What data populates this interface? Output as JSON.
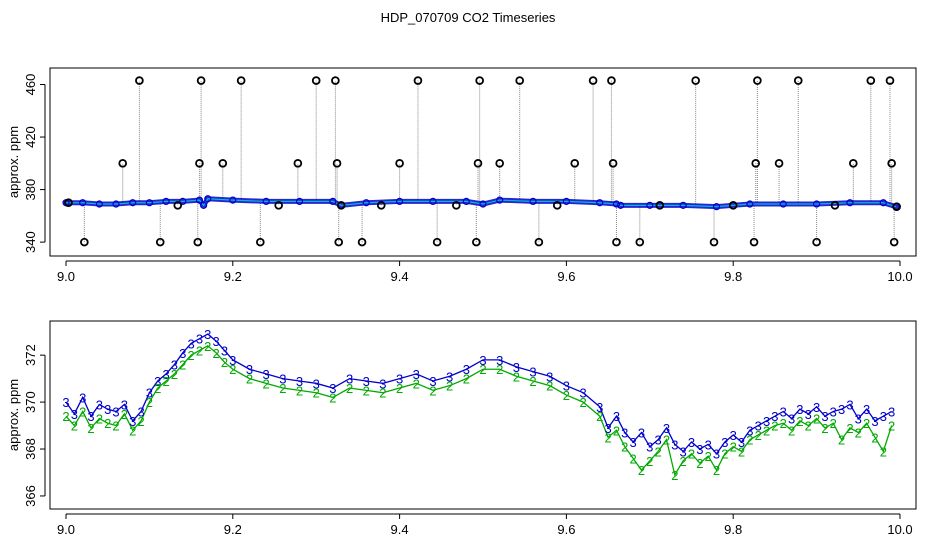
{
  "title": "HDP_070709  CO2 Timeseries",
  "colors": {
    "circle": "#000000",
    "series_blue": "#0000cc",
    "series_cyan": "#00cccc",
    "series_green": "#00aa00",
    "spike_line": "#888888"
  },
  "chart_data": [
    {
      "type": "scatter",
      "ylabel": "approx. ppm",
      "xlim": [
        9.0,
        10.0
      ],
      "ylim": [
        334,
        468
      ],
      "xticks": [
        "9.0",
        "9.2",
        "9.4",
        "9.6",
        "9.8",
        "10.0"
      ],
      "yticks": [
        "340",
        "380",
        "420",
        "460"
      ],
      "series": [
        {
          "x": [
            9.0,
            9.02,
            9.04,
            9.06,
            9.08,
            9.1,
            9.12,
            9.14,
            9.16,
            9.165,
            9.17,
            9.2,
            9.24,
            9.28,
            9.32,
            9.33,
            9.36,
            9.4,
            9.44,
            9.48,
            9.5,
            9.52,
            9.56,
            9.6,
            9.64,
            9.66,
            9.665,
            9.7,
            9.74,
            9.78,
            9.82,
            9.86,
            9.9,
            9.94,
            9.98,
            9.995
          ],
          "y": [
            370,
            370,
            369,
            369,
            370,
            370,
            371,
            371,
            372,
            368,
            373,
            372,
            371,
            371,
            371,
            368,
            370,
            371,
            371,
            371,
            369,
            372,
            371,
            371,
            370,
            369,
            368,
            368,
            368,
            367,
            369,
            369,
            369,
            370,
            370,
            367
          ]
        },
        {
          "x": [
            9.003,
            9.022,
            9.068,
            9.088,
            9.113,
            9.134,
            9.158,
            9.16,
            9.162,
            9.188,
            9.21,
            9.233,
            9.255,
            9.278,
            9.3,
            9.323,
            9.325,
            9.327,
            9.33,
            9.355,
            9.378,
            9.4,
            9.422,
            9.445,
            9.468,
            9.492,
            9.494,
            9.496,
            9.52,
            9.544,
            9.567,
            9.589,
            9.61,
            9.632,
            9.654,
            9.656,
            9.66,
            9.688,
            9.712,
            9.755,
            9.777,
            9.8,
            9.825,
            9.827,
            9.829,
            9.855,
            9.878,
            9.9,
            9.922,
            9.944,
            9.965,
            9.988,
            9.99,
            9.993,
            9.996
          ],
          "y": [
            370,
            340,
            400,
            463,
            340,
            368,
            340,
            400,
            463,
            400,
            463,
            340,
            368,
            400,
            463,
            463,
            400,
            340,
            368,
            340,
            368,
            400,
            463,
            340,
            368,
            340,
            400,
            463,
            400,
            463,
            340,
            368,
            400,
            463,
            463,
            400,
            340,
            340,
            368,
            463,
            340,
            368,
            340,
            400,
            463,
            400,
            463,
            340,
            368,
            400,
            463,
            463,
            400,
            340,
            367
          ]
        }
      ]
    },
    {
      "type": "line",
      "ylabel": "approx. ppm",
      "xlim": [
        9.0,
        10.0
      ],
      "ylim": [
        365.7,
        373.2
      ],
      "xticks": [
        "9.0",
        "9.2",
        "9.4",
        "9.6",
        "9.8",
        "10.0"
      ],
      "yticks": [
        "366",
        "368",
        "370",
        "372"
      ],
      "series": [
        {
          "marker": "3",
          "x": [
            9.0,
            9.01,
            9.02,
            9.03,
            9.04,
            9.05,
            9.06,
            9.07,
            9.08,
            9.09,
            9.1,
            9.11,
            9.12,
            9.13,
            9.14,
            9.15,
            9.16,
            9.17,
            9.18,
            9.19,
            9.2,
            9.22,
            9.24,
            9.26,
            9.28,
            9.3,
            9.32,
            9.34,
            9.36,
            9.38,
            9.4,
            9.42,
            9.44,
            9.46,
            9.48,
            9.5,
            9.52,
            9.54,
            9.56,
            9.58,
            9.6,
            9.62,
            9.64,
            9.65,
            9.66,
            9.67,
            9.68,
            9.69,
            9.7,
            9.71,
            9.72,
            9.73,
            9.74,
            9.75,
            9.76,
            9.77,
            9.78,
            9.79,
            9.8,
            9.81,
            9.82,
            9.83,
            9.84,
            9.85,
            9.86,
            9.87,
            9.88,
            9.89,
            9.9,
            9.91,
            9.92,
            9.93,
            9.94,
            9.95,
            9.96,
            9.97,
            9.98,
            9.99
          ],
          "y": [
            370.0,
            369.5,
            370.2,
            369.4,
            369.9,
            369.7,
            369.6,
            369.9,
            369.2,
            369.6,
            370.4,
            370.9,
            371.2,
            371.6,
            372.1,
            372.5,
            372.7,
            372.9,
            372.6,
            372.2,
            371.8,
            371.4,
            371.2,
            371.0,
            370.9,
            370.8,
            370.6,
            371.0,
            370.9,
            370.8,
            371.0,
            371.2,
            370.9,
            371.1,
            371.4,
            371.8,
            371.8,
            371.5,
            371.3,
            371.1,
            370.7,
            370.4,
            369.8,
            368.9,
            369.4,
            368.7,
            368.3,
            368.7,
            368.1,
            368.4,
            368.9,
            368.2,
            367.9,
            368.3,
            368.0,
            368.2,
            367.8,
            368.3,
            368.6,
            368.3,
            368.8,
            369.0,
            369.2,
            369.4,
            369.6,
            369.3,
            369.7,
            369.5,
            369.8,
            369.4,
            369.6,
            369.7,
            369.9,
            369.3,
            369.7,
            369.2,
            369.4,
            369.6
          ]
        },
        {
          "marker": "2",
          "x": [
            9.0,
            9.01,
            9.02,
            9.03,
            9.04,
            9.05,
            9.06,
            9.07,
            9.08,
            9.09,
            9.1,
            9.11,
            9.12,
            9.13,
            9.14,
            9.15,
            9.16,
            9.17,
            9.18,
            9.19,
            9.2,
            9.22,
            9.24,
            9.26,
            9.28,
            9.3,
            9.32,
            9.34,
            9.36,
            9.38,
            9.4,
            9.42,
            9.44,
            9.46,
            9.48,
            9.5,
            9.52,
            9.54,
            9.56,
            9.58,
            9.6,
            9.62,
            9.64,
            9.65,
            9.66,
            9.67,
            9.68,
            9.69,
            9.7,
            9.71,
            9.72,
            9.73,
            9.74,
            9.75,
            9.76,
            9.77,
            9.78,
            9.79,
            9.8,
            9.81,
            9.82,
            9.83,
            9.84,
            9.85,
            9.86,
            9.87,
            9.88,
            9.89,
            9.9,
            9.91,
            9.92,
            9.93,
            9.94,
            9.95,
            9.96,
            9.97,
            9.98,
            9.99
          ],
          "y": [
            369.4,
            369.0,
            369.6,
            368.9,
            369.3,
            369.1,
            369.0,
            369.5,
            368.8,
            369.2,
            370.0,
            370.6,
            370.9,
            371.2,
            371.6,
            372.0,
            372.2,
            372.4,
            372.1,
            371.7,
            371.4,
            371.0,
            370.8,
            370.6,
            370.5,
            370.4,
            370.2,
            370.6,
            370.5,
            370.4,
            370.6,
            370.8,
            370.5,
            370.7,
            371.0,
            371.4,
            371.4,
            371.1,
            370.9,
            370.7,
            370.3,
            370.0,
            369.4,
            368.5,
            368.8,
            368.1,
            367.6,
            367.1,
            367.5,
            367.9,
            368.4,
            366.9,
            367.5,
            367.8,
            367.4,
            367.7,
            367.1,
            367.8,
            368.1,
            367.9,
            368.4,
            368.6,
            368.8,
            369.0,
            369.1,
            368.8,
            369.2,
            369.0,
            369.3,
            368.9,
            369.1,
            368.4,
            368.9,
            368.7,
            369.1,
            368.5,
            367.9,
            369.0
          ]
        }
      ]
    }
  ]
}
